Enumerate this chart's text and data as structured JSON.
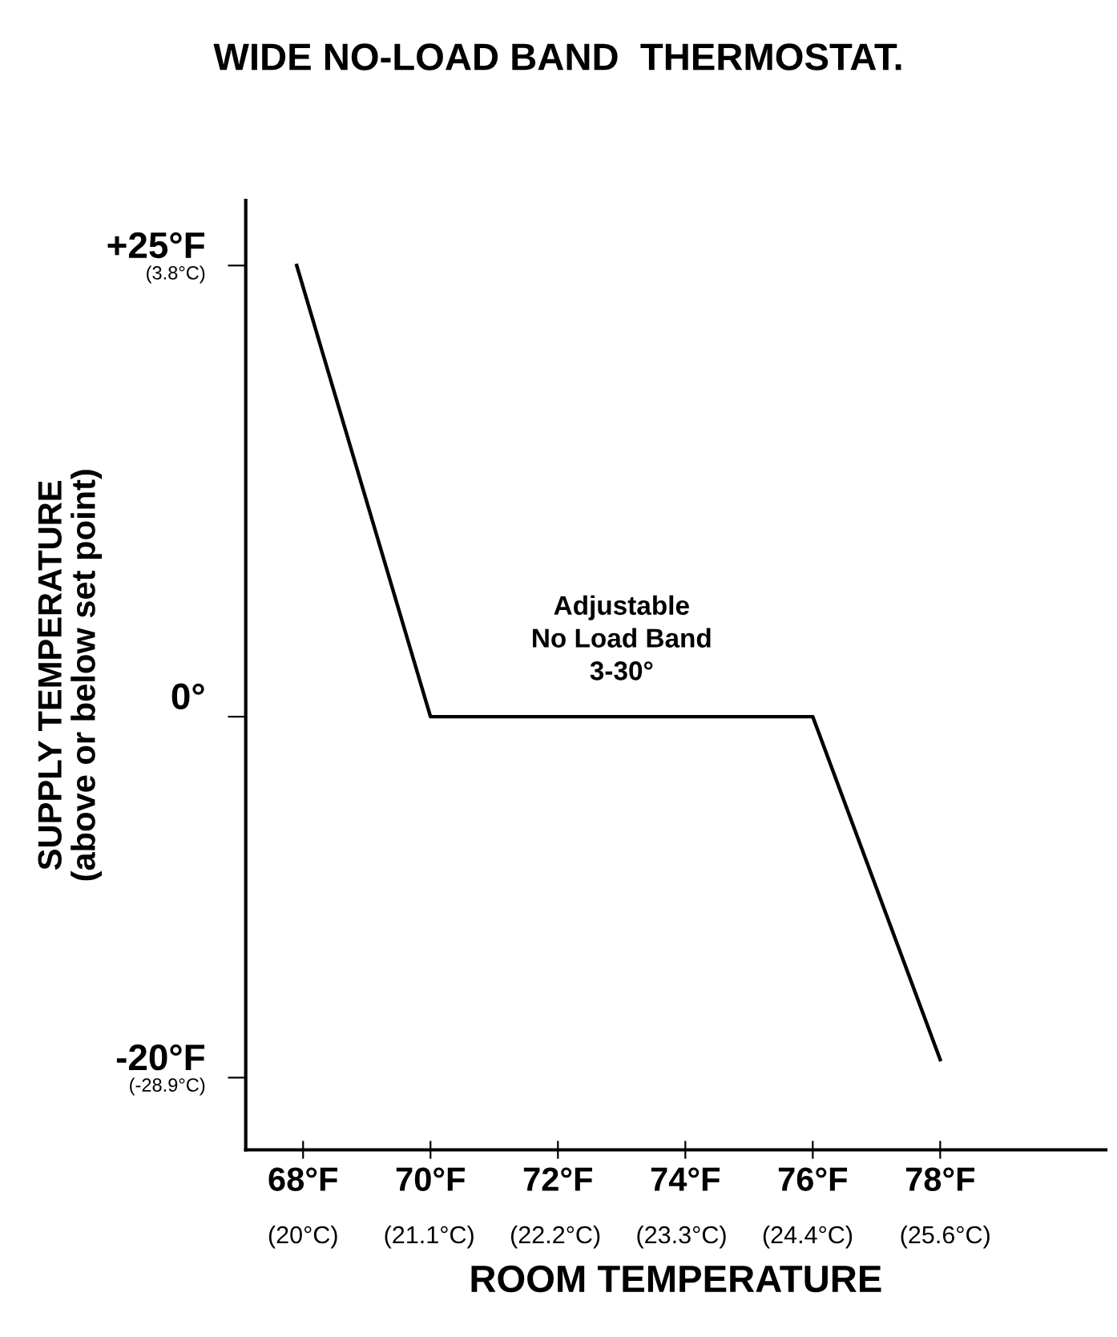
{
  "chart_data": {
    "type": "line",
    "title": "WIDE NO-LOAD BAND  THERMOSTAT.",
    "xlabel": "ROOM TEMPERATURE",
    "ylabel": "SUPPLY TEMPERATURE\n(above or below set point)",
    "x": [
      67.9,
      70,
      76,
      78
    ],
    "series": [
      {
        "color": "#000000",
        "values": [
          25,
          0,
          0,
          -19
        ]
      }
    ],
    "xlim": [
      67.1,
      80.6
    ],
    "ylim": [
      -24,
      28.6
    ],
    "xticks": [
      {
        "value": 68,
        "label": "68°F"
      },
      {
        "value": 70,
        "label": "70°F"
      },
      {
        "value": 72,
        "label": "72°F"
      },
      {
        "value": 74,
        "label": "74°F"
      },
      {
        "value": 76,
        "label": "76°F"
      },
      {
        "value": 78,
        "label": "78°F"
      }
    ],
    "yticks": [
      {
        "value": 25,
        "label": "+25°F"
      },
      {
        "value": 0,
        "label": "0°"
      },
      {
        "value": -20,
        "label": "-20°F"
      }
    ],
    "x2lim": [
      19.5,
      27.0
    ],
    "x2ticks": [
      {
        "value": 20,
        "label": "(20°C)"
      },
      {
        "value": 21.1,
        "label": "(21.1°C)"
      },
      {
        "value": 22.2,
        "label": "(22.2°C)"
      },
      {
        "value": 23.3,
        "label": "(23.3°C)"
      },
      {
        "value": 24.4,
        "label": "(24.4°C)"
      },
      {
        "value": 25.6,
        "label": "(25.6°C)"
      }
    ],
    "y2lim": [
      -31.8,
      6.42
    ],
    "y2ticks": [
      {
        "value": 3.8,
        "label": "(3.8°C)"
      },
      {
        "value": -28.9,
        "label": "(-28.9°C)"
      }
    ],
    "annotations": [
      {
        "text": "Adjustable\nNo Load Band\n3-30°",
        "x": 73,
        "y": 0
      }
    ],
    "grid": false,
    "legend": false,
    "line_style": "solid",
    "marker": "none"
  }
}
